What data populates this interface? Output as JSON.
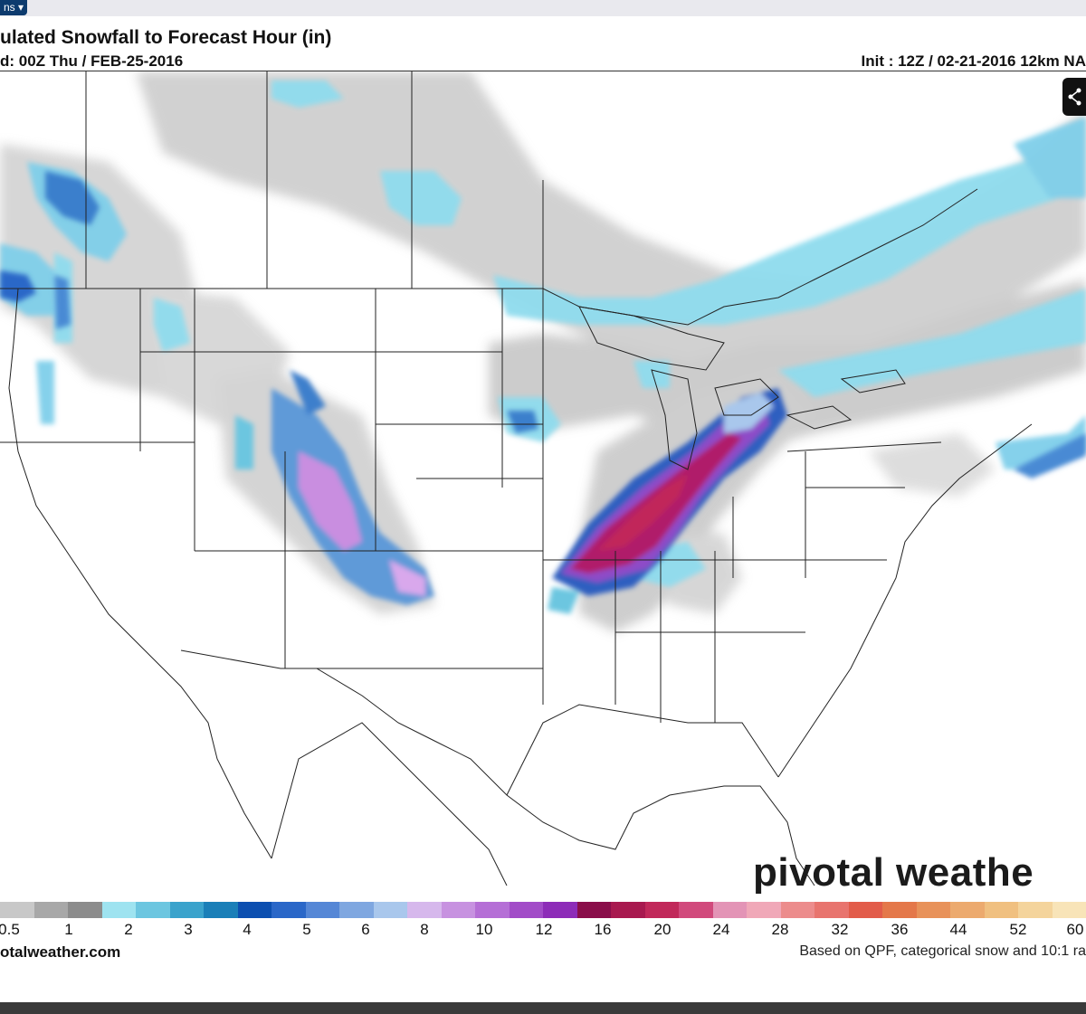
{
  "header": {
    "options_label": "ns ▾",
    "title": "ulated Snowfall to Forecast Hour (in)",
    "valid": "d: 00Z Thu / FEB-25-2016",
    "init": "Init : 12Z / 02-21-2016 12km NA"
  },
  "branding": {
    "logo_text": "pivotal weathe",
    "site": "otalweather.com",
    "basis": "Based on QPF, categorical snow and 10:1 ra"
  },
  "legend": {
    "ticks": [
      "0.5",
      "1",
      "2",
      "3",
      "4",
      "5",
      "6",
      "8",
      "10",
      "12",
      "16",
      "20",
      "24",
      "28",
      "32",
      "36",
      "44",
      "52",
      "60"
    ],
    "colors": [
      "#c8c8c8",
      "#a8a8a8",
      "#8c8c8c",
      "#9ee3f0",
      "#6cc6e0",
      "#3aa3cc",
      "#1a7fb8",
      "#0c4fb0",
      "#2a67c8",
      "#5587d6",
      "#7fa7e0",
      "#a9c7ec",
      "#d6b8ec",
      "#c792e0",
      "#b56fd6",
      "#a24cc8",
      "#8d2cb8",
      "#8a0e4a",
      "#a8194f",
      "#c1285a",
      "#d14a7c",
      "#e394b6",
      "#f0a8b8",
      "#ec8c8c",
      "#e8746e",
      "#e25c4a",
      "#e4784a",
      "#e8925a",
      "#ecaa6e",
      "#f0c080",
      "#f4d49c",
      "#f8e4b8"
    ]
  },
  "icons": {
    "share": "share-icon"
  }
}
